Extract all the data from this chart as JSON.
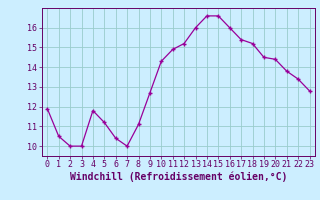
{
  "x": [
    0,
    1,
    2,
    3,
    4,
    5,
    6,
    7,
    8,
    9,
    10,
    11,
    12,
    13,
    14,
    15,
    16,
    17,
    18,
    19,
    20,
    21,
    22,
    23
  ],
  "y": [
    11.9,
    10.5,
    10.0,
    10.0,
    11.8,
    11.2,
    10.4,
    10.0,
    11.1,
    12.7,
    14.3,
    14.9,
    15.2,
    16.0,
    16.6,
    16.6,
    16.0,
    15.4,
    15.2,
    14.5,
    14.4,
    13.8,
    13.4,
    12.8
  ],
  "line_color": "#990099",
  "marker": "+",
  "bg_color": "#cceeff",
  "grid_color": "#99cccc",
  "xlabel": "Windchill (Refroidissement éolien,°C)",
  "xlim": [
    -0.5,
    23.5
  ],
  "ylim": [
    9.5,
    17.0
  ],
  "yticks": [
    10,
    11,
    12,
    13,
    14,
    15,
    16
  ],
  "xticks": [
    0,
    1,
    2,
    3,
    4,
    5,
    6,
    7,
    8,
    9,
    10,
    11,
    12,
    13,
    14,
    15,
    16,
    17,
    18,
    19,
    20,
    21,
    22,
    23
  ],
  "tick_fontsize": 6.0,
  "xlabel_fontsize": 7.0,
  "spine_color": "#660066",
  "tick_color": "#660066"
}
